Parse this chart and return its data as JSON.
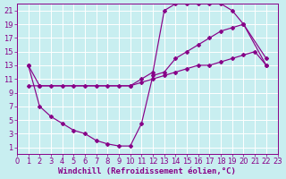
{
  "background_color": "#c8eef0",
  "grid_color": "#ffffff",
  "line_color": "#880088",
  "xlabel": "Windchill (Refroidissement éolien,°C)",
  "xlim": [
    0,
    23
  ],
  "ylim": [
    0,
    22
  ],
  "xticks": [
    0,
    1,
    2,
    3,
    4,
    5,
    6,
    7,
    8,
    9,
    10,
    11,
    12,
    13,
    14,
    15,
    16,
    17,
    18,
    19,
    20,
    21,
    22,
    23
  ],
  "yticks": [
    1,
    3,
    5,
    7,
    9,
    11,
    13,
    15,
    17,
    19,
    21
  ],
  "curve1_x": [
    1,
    2,
    10,
    11,
    12,
    13,
    14,
    15,
    16,
    17,
    18,
    19,
    20,
    22
  ],
  "curve1_y": [
    13,
    10,
    10,
    11,
    12,
    21,
    22,
    22,
    22,
    22,
    22,
    21,
    19,
    13
  ],
  "curve2_x": [
    1,
    2,
    3,
    4,
    5,
    6,
    7,
    8,
    9,
    10,
    11,
    12,
    13,
    14,
    15,
    16,
    17,
    18,
    19,
    20,
    21,
    22
  ],
  "curve2_y": [
    10,
    10,
    10,
    10,
    10,
    10,
    10,
    10,
    10,
    10,
    10.5,
    11,
    11.5,
    12,
    12.5,
    13,
    13,
    13.5,
    14,
    14.5,
    15,
    13
  ],
  "curve3_x": [
    1,
    2,
    3,
    4,
    5,
    6,
    7,
    8,
    9,
    10,
    11,
    12,
    13,
    14,
    15,
    16,
    17,
    18,
    19,
    20,
    22
  ],
  "curve3_y": [
    13,
    7,
    5.5,
    4.5,
    3.5,
    3,
    2,
    1.5,
    1.2,
    1.2,
    4.5,
    11.5,
    12,
    14,
    15,
    16,
    17,
    18,
    18.5,
    19,
    14
  ],
  "font_size_label": 6.5,
  "font_size_tick": 6
}
